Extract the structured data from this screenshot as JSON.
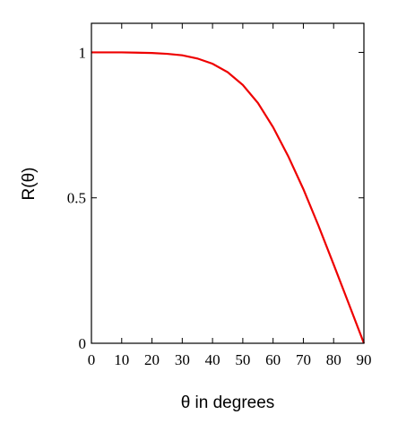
{
  "chart_data": {
    "type": "line",
    "xlabel": "θ in degrees",
    "ylabel": "R(θ)",
    "xlim": [
      0,
      90
    ],
    "ylim": [
      0,
      1.1
    ],
    "x_ticks": [
      0,
      10,
      20,
      30,
      40,
      50,
      60,
      70,
      80,
      90
    ],
    "y_ticks": [
      0,
      0.5,
      1
    ],
    "x_tick_labels": [
      "0",
      "10",
      "20",
      "30",
      "40",
      "50",
      "60",
      "70",
      "80",
      "90"
    ],
    "y_tick_labels": [
      "0",
      "0.5",
      "1"
    ],
    "grid": false,
    "series": [
      {
        "color": "#ee0000",
        "x": [
          0,
          5,
          10,
          15,
          20,
          25,
          30,
          35,
          40,
          45,
          50,
          55,
          60,
          65,
          70,
          75,
          80,
          85,
          90
        ],
        "y": [
          1.0,
          1.0,
          1.0,
          0.999,
          0.998,
          0.995,
          0.99,
          0.979,
          0.961,
          0.932,
          0.888,
          0.826,
          0.743,
          0.643,
          0.53,
          0.404,
          0.271,
          0.136,
          0.0
        ]
      }
    ]
  }
}
